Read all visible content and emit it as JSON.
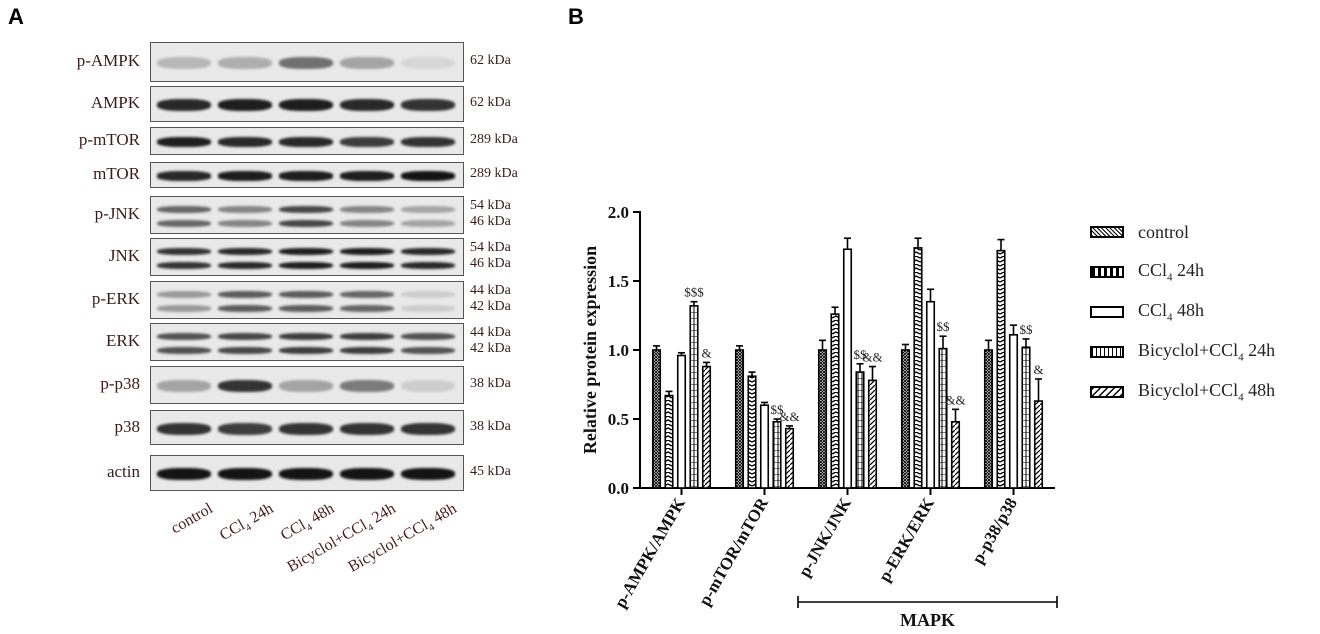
{
  "panel_a": {
    "letter": "A",
    "rows": [
      {
        "label": "p-AMPK",
        "kda": [
          "62 kDa"
        ]
      },
      {
        "label": "AMPK",
        "kda": [
          "62 kDa"
        ]
      },
      {
        "label": "p-mTOR",
        "kda": [
          "289 kDa"
        ]
      },
      {
        "label": "mTOR",
        "kda": [
          "289 kDa"
        ]
      },
      {
        "label": "p-JNK",
        "kda": [
          "54 kDa",
          "46 kDa"
        ]
      },
      {
        "label": "JNK",
        "kda": [
          "54 kDa",
          "46 kDa"
        ]
      },
      {
        "label": "p-ERK",
        "kda": [
          "44 kDa",
          "42 kDa"
        ]
      },
      {
        "label": "ERK",
        "kda": [
          "44 kDa",
          "42 kDa"
        ]
      },
      {
        "label": "p-p38",
        "kda": [
          "38 kDa"
        ]
      },
      {
        "label": "p38",
        "kda": [
          "38 kDa"
        ]
      },
      {
        "label": "actin",
        "kda": [
          "45 kDa"
        ]
      }
    ],
    "lanes": [
      {
        "pre": "control",
        "sub": "",
        "post": ""
      },
      {
        "pre": "CCl",
        "sub": "4",
        "post": " 24h"
      },
      {
        "pre": "CCl",
        "sub": "4",
        "post": " 48h"
      },
      {
        "pre": "Bicyclol+CCl",
        "sub": "4",
        "post": " 24h"
      },
      {
        "pre": "Bicyclol+CCl",
        "sub": "4",
        "post": " 48h"
      }
    ]
  },
  "panel_b": {
    "letter": "B",
    "group_bracket_label": "MAPK"
  },
  "chart_data": {
    "type": "bar",
    "ylabel": "Relative protein expression",
    "ylim": [
      0,
      2.0
    ],
    "yticks": [
      "0.0",
      "0.5",
      "1.0",
      "1.5",
      "2.0"
    ],
    "grid": false,
    "legend_position": "right",
    "categories": [
      "p-AMPK/AMPK",
      "p-mTOR/mTOR",
      "p-JNK/JNK",
      "p-ERK/ERK",
      "p-p38/p38"
    ],
    "series": [
      {
        "name": "control",
        "pre": "control",
        "sub": "",
        "post": "",
        "pattern": "crosshatch",
        "values": [
          1.0,
          1.0,
          1.0,
          1.0,
          1.0
        ],
        "errors": [
          0.03,
          0.03,
          0.07,
          0.04,
          0.07
        ]
      },
      {
        "name": "CCl4 24h",
        "pre": "CCl",
        "sub": "4",
        "post": " 24h",
        "pattern": "checker",
        "values": [
          0.67,
          0.81,
          1.26,
          1.74,
          1.72
        ],
        "errors": [
          0.03,
          0.03,
          0.05,
          0.07,
          0.08
        ]
      },
      {
        "name": "CCl4 48h",
        "pre": "CCl",
        "sub": "4",
        "post": " 48h",
        "pattern": "hline",
        "values": [
          0.96,
          0.6,
          1.73,
          1.35,
          1.11
        ],
        "errors": [
          0.02,
          0.02,
          0.08,
          0.09,
          0.07
        ]
      },
      {
        "name": "Bicyclol+CCl4 24h",
        "pre": "Bicyclol+CCl",
        "sub": "4",
        "post": " 24h",
        "pattern": "grid",
        "values": [
          1.32,
          0.48,
          0.84,
          1.01,
          1.02
        ],
        "errors": [
          0.03,
          0.02,
          0.06,
          0.09,
          0.06
        ]
      },
      {
        "name": "Bicyclol+CCl4 48h",
        "pre": "Bicyclol+CCl",
        "sub": "4",
        "post": " 48h",
        "pattern": "diag",
        "values": [
          0.88,
          0.43,
          0.78,
          0.48,
          0.63
        ],
        "errors": [
          0.03,
          0.02,
          0.1,
          0.09,
          0.16
        ]
      }
    ],
    "annotations": [
      {
        "category": 0,
        "series": 3,
        "text": "$$$"
      },
      {
        "category": 0,
        "series": 4,
        "text": "&"
      },
      {
        "category": 1,
        "series": 3,
        "text": "$$"
      },
      {
        "category": 1,
        "series": 4,
        "text": "&&"
      },
      {
        "category": 2,
        "series": 3,
        "text": "$$"
      },
      {
        "category": 2,
        "series": 4,
        "text": "&&"
      },
      {
        "category": 3,
        "series": 3,
        "text": "$$"
      },
      {
        "category": 3,
        "series": 4,
        "text": "&&"
      },
      {
        "category": 4,
        "series": 3,
        "text": "$$"
      },
      {
        "category": 4,
        "series": 4,
        "text": "&"
      }
    ]
  }
}
